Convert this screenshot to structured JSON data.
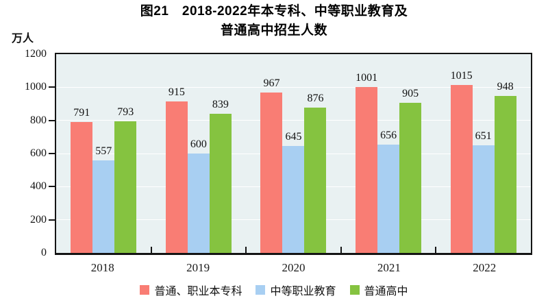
{
  "chart": {
    "title_line1": "图21　2018-2022年本专科、中等职业教育及",
    "title_line2": "普通高中招生人数",
    "unit": "万人"
  },
  "chart_data": {
    "type": "bar",
    "title": "图21 2018-2022年本专科、中等职业教育及普通高中招生人数",
    "ylabel_unit": "万人",
    "categories": [
      "2018",
      "2019",
      "2020",
      "2021",
      "2022"
    ],
    "series": [
      {
        "name": "普通、职业本专科",
        "color": "#F97D74",
        "values": [
          791,
          915,
          967,
          1001,
          1015
        ]
      },
      {
        "name": "中等职业教育",
        "color": "#A8CFF2",
        "values": [
          557,
          600,
          645,
          656,
          651
        ]
      },
      {
        "name": "普通高中",
        "color": "#85C340",
        "values": [
          793,
          839,
          876,
          905,
          948
        ]
      }
    ],
    "ylim": [
      0,
      1200
    ],
    "yticks": [
      0,
      200,
      400,
      600,
      800,
      1000,
      1200
    ],
    "grid": true,
    "bar_value_labels": true,
    "legend_position": "bottom",
    "colors": {
      "plot_background": "#E9F1F2",
      "gridline": "#FFFFFF",
      "axis": "#141414",
      "text": "#111111"
    }
  }
}
